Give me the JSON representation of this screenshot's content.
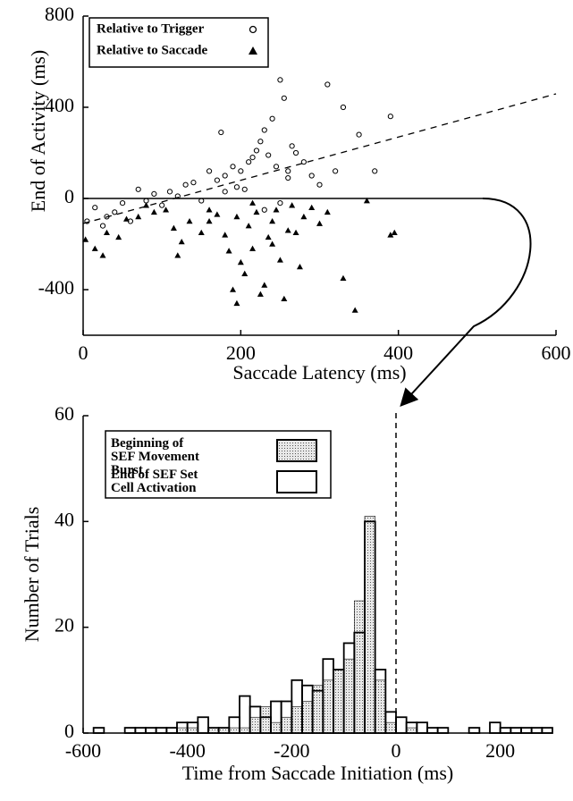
{
  "chart_data": [
    {
      "type": "scatter",
      "xlabel": "Saccade Latency (ms)",
      "ylabel": "End of Activity (ms)",
      "xlim": [
        0,
        600
      ],
      "xticks": [
        0,
        200,
        400,
        600
      ],
      "ylim": [
        -600,
        800
      ],
      "yticks": [
        -400,
        0,
        400,
        800
      ],
      "legend": "upper left",
      "series": [
        {
          "name": "Relative to Trigger",
          "marker": "circle",
          "color": "#000000",
          "x": [
            5,
            15,
            25,
            30,
            40,
            50,
            60,
            70,
            80,
            90,
            100,
            110,
            120,
            130,
            140,
            150,
            160,
            170,
            175,
            180,
            190,
            195,
            200,
            205,
            210,
            215,
            220,
            225,
            230,
            235,
            240,
            245,
            250,
            255,
            260,
            265,
            270,
            280,
            290,
            300,
            310,
            320,
            330,
            350,
            370,
            390,
            180,
            230,
            250,
            260
          ],
          "values": [
            -100,
            -40,
            -120,
            -80,
            -60,
            -20,
            -100,
            40,
            -10,
            20,
            -30,
            30,
            10,
            60,
            70,
            -10,
            120,
            80,
            290,
            100,
            140,
            50,
            120,
            40,
            160,
            180,
            210,
            250,
            300,
            190,
            350,
            140,
            520,
            440,
            120,
            230,
            200,
            160,
            100,
            60,
            500,
            120,
            400,
            280,
            120,
            360,
            30,
            -50,
            -20,
            90
          ]
        },
        {
          "name": "Relative to Saccade",
          "marker": "triangle",
          "color": "#000000",
          "x": [
            3,
            15,
            25,
            30,
            45,
            55,
            70,
            80,
            90,
            105,
            115,
            125,
            135,
            150,
            160,
            170,
            180,
            185,
            190,
            195,
            200,
            205,
            210,
            215,
            220,
            225,
            230,
            235,
            240,
            245,
            250,
            255,
            260,
            265,
            270,
            280,
            290,
            300,
            310,
            330,
            345,
            360,
            390,
            395,
            195,
            215,
            240,
            275,
            120,
            160
          ],
          "values": [
            -180,
            -220,
            -250,
            -150,
            -170,
            -90,
            -80,
            -30,
            -60,
            -50,
            -130,
            -190,
            -100,
            -150,
            -50,
            -70,
            -160,
            -230,
            -400,
            -460,
            -280,
            -330,
            -120,
            -220,
            -60,
            -420,
            -380,
            -170,
            -100,
            -50,
            -270,
            -440,
            -140,
            -30,
            -150,
            -80,
            -40,
            -110,
            -60,
            -350,
            -490,
            -10,
            -160,
            -150,
            -80,
            -20,
            -200,
            -300,
            -250,
            -100
          ]
        }
      ]
    },
    {
      "type": "histogram",
      "xlabel": "Time from Saccade Initiation (ms)",
      "ylabel": "Number of Trials",
      "xlim": [
        -600,
        300
      ],
      "xticks": [
        -600,
        -400,
        -200,
        0,
        200
      ],
      "ylim": [
        0,
        60
      ],
      "yticks": [
        0,
        20,
        40,
        60
      ],
      "legend": "upper left",
      "bins": [
        -600,
        -580,
        -560,
        -540,
        -520,
        -500,
        -480,
        -460,
        -440,
        -420,
        -400,
        -380,
        -360,
        -340,
        -320,
        -300,
        -280,
        -260,
        -240,
        -220,
        -200,
        -180,
        -160,
        -140,
        -120,
        -100,
        -80,
        -60,
        -40,
        -20,
        0,
        20,
        40,
        60,
        80,
        100,
        120,
        140,
        160,
        180,
        200,
        220,
        240,
        260,
        280,
        300
      ],
      "series": [
        {
          "name": "Beginning of SEF Movement Burst",
          "fill": "dotted",
          "color": "#000000",
          "values": [
            0,
            0,
            0,
            0,
            0,
            0,
            0,
            0,
            0,
            1,
            1,
            0,
            1,
            1,
            1,
            1,
            3,
            5,
            2,
            3,
            5,
            6,
            9,
            10,
            12,
            14,
            25,
            41,
            10,
            2,
            0,
            1,
            0,
            0,
            0,
            0,
            0,
            0,
            0,
            0,
            0,
            0,
            0,
            0,
            0
          ]
        },
        {
          "name": "End of SEF Set Cell Activation",
          "fill": "none",
          "color": "#000000",
          "values": [
            0,
            1,
            0,
            0,
            1,
            1,
            1,
            1,
            1,
            2,
            2,
            3,
            1,
            1,
            3,
            7,
            5,
            3,
            6,
            6,
            10,
            9,
            8,
            14,
            12,
            17,
            19,
            40,
            12,
            4,
            3,
            2,
            2,
            1,
            1,
            0,
            0,
            1,
            0,
            2,
            1,
            1,
            1,
            1,
            1
          ]
        }
      ]
    }
  ]
}
